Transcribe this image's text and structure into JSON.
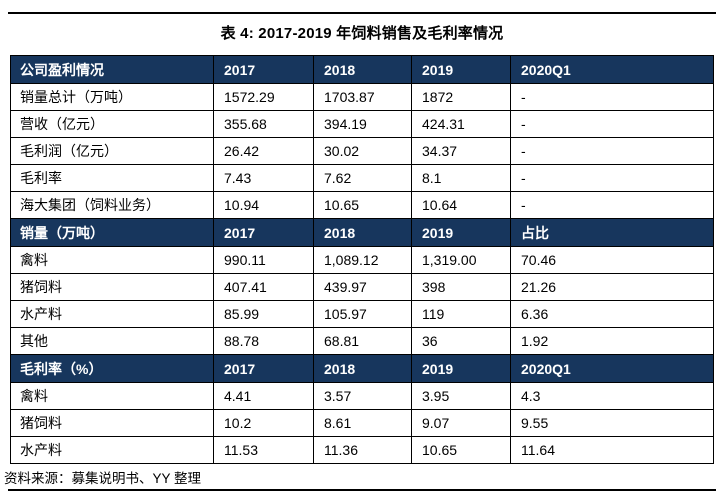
{
  "title": "表 4: 2017-2019 年饲料销售及毛利率情况",
  "colors": {
    "header_bg": "#17365D",
    "header_text": "#FFFFFF",
    "border": "#000000"
  },
  "table": {
    "sections": [
      {
        "name": "company-profit",
        "header": [
          "公司盈利情况",
          "2017",
          "2018",
          "2019",
          "2020Q1"
        ],
        "rows": [
          [
            "销量总计（万吨）",
            "1572.29",
            "1703.87",
            "1872",
            "-"
          ],
          [
            "营收（亿元）",
            "355.68",
            "394.19",
            "424.31",
            "-"
          ],
          [
            "毛利润（亿元）",
            "26.42",
            "30.02",
            "34.37",
            "-"
          ],
          [
            "毛利率",
            "7.43",
            "7.62",
            "8.1",
            "-"
          ],
          [
            "海大集团（饲料业务）",
            "10.94",
            "10.65",
            "10.64",
            "-"
          ]
        ]
      },
      {
        "name": "sales-volume",
        "header": [
          "销量（万吨）",
          "2017",
          "2018",
          "2019",
          "占比"
        ],
        "rows": [
          [
            "禽料",
            "990.11",
            "1,089.12",
            "1,319.00",
            "70.46"
          ],
          [
            "猪饲料",
            "407.41",
            "439.97",
            "398",
            "21.26"
          ],
          [
            "水产料",
            "85.99",
            "105.97",
            "119",
            "6.36"
          ],
          [
            "其他",
            "88.78",
            "68.81",
            "36",
            "1.92"
          ]
        ]
      },
      {
        "name": "gross-margin",
        "header": [
          "毛利率（%）",
          "2017",
          "2018",
          "2019",
          "2020Q1"
        ],
        "rows": [
          [
            "禽料",
            "4.41",
            "3.57",
            "3.95",
            "4.3"
          ],
          [
            "猪饲料",
            "10.2",
            "8.61",
            "9.07",
            "9.55"
          ],
          [
            "水产料",
            "11.53",
            "11.36",
            "10.65",
            "11.64"
          ]
        ]
      }
    ]
  },
  "footer": {
    "source": "资料来源：募集说明书、YY 整理"
  }
}
